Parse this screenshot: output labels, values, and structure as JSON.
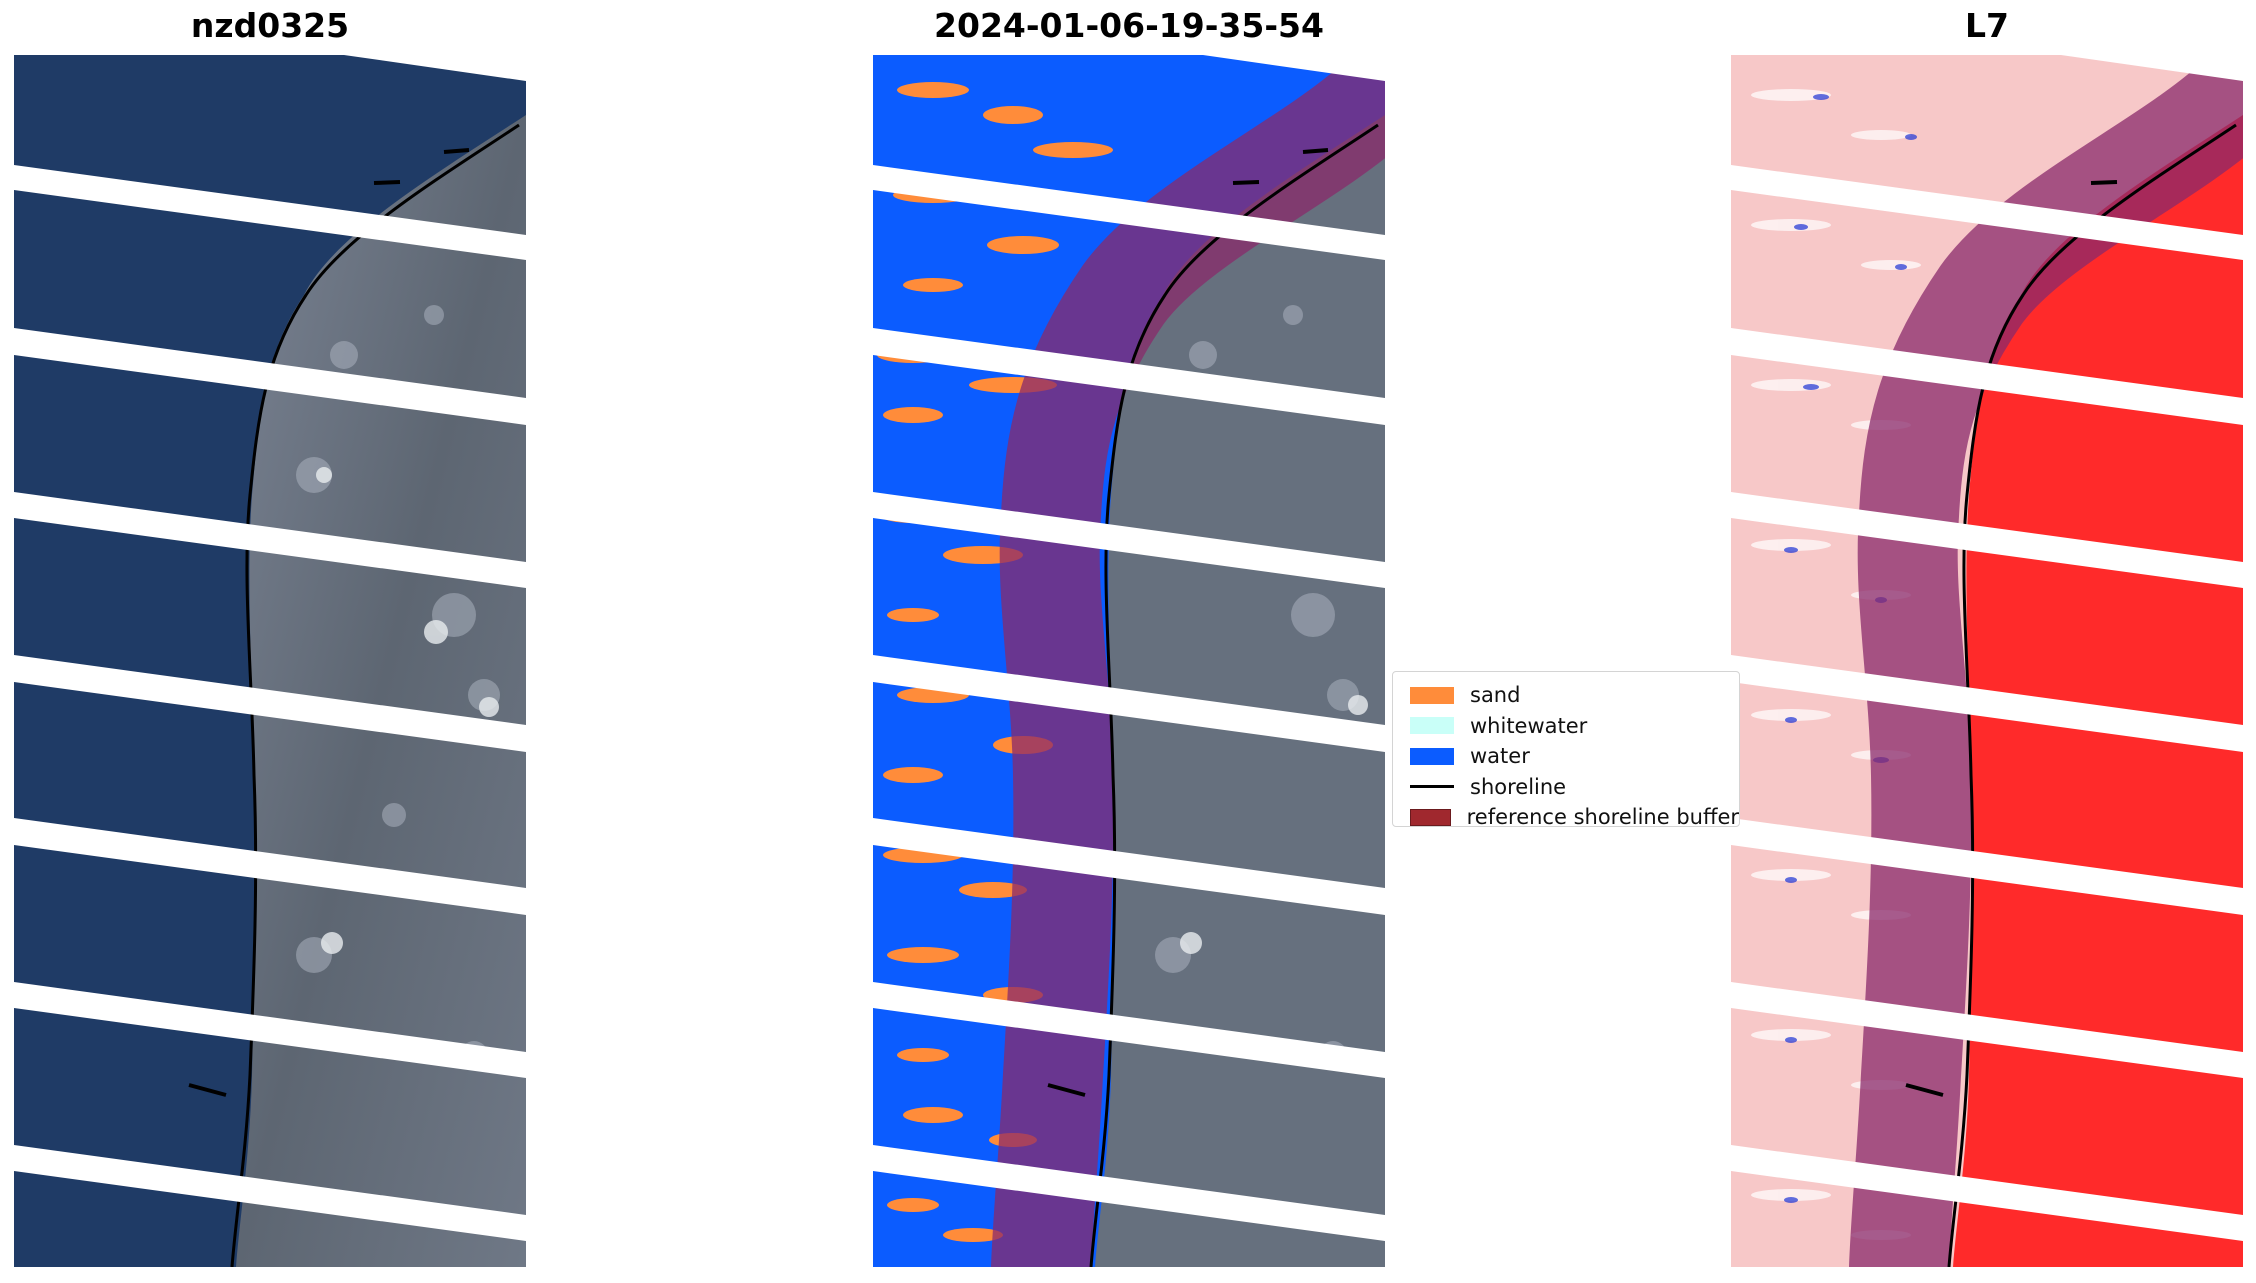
{
  "figure": {
    "panels": [
      {
        "title": "nzd0325",
        "content": "rgb-satellite-image"
      },
      {
        "title": "2024-01-06-19-35-54",
        "content": "classified-image"
      },
      {
        "title": "L7",
        "content": "mndwi-index-image"
      }
    ]
  },
  "legend": {
    "items": [
      {
        "label": "sand",
        "color": "#ff8c3a",
        "kind": "patch"
      },
      {
        "label": "whitewater",
        "color": "#c9fff8",
        "kind": "patch"
      },
      {
        "label": "water",
        "color": "#0b5cff",
        "kind": "patch"
      },
      {
        "label": "shoreline",
        "color": "#000000",
        "kind": "line"
      },
      {
        "label": "reference shoreline buffer",
        "color": "#a0282e",
        "kind": "patch"
      }
    ]
  },
  "colors": {
    "deep_water": "#1e3a63",
    "land_gray": "#6b7482",
    "class_water": "#0b5cff",
    "class_sand": "#ff8c3a",
    "index_red": "#ff2a2a",
    "index_pink": "#f7c8c8",
    "buffer_purple": "#8a2a6b"
  }
}
